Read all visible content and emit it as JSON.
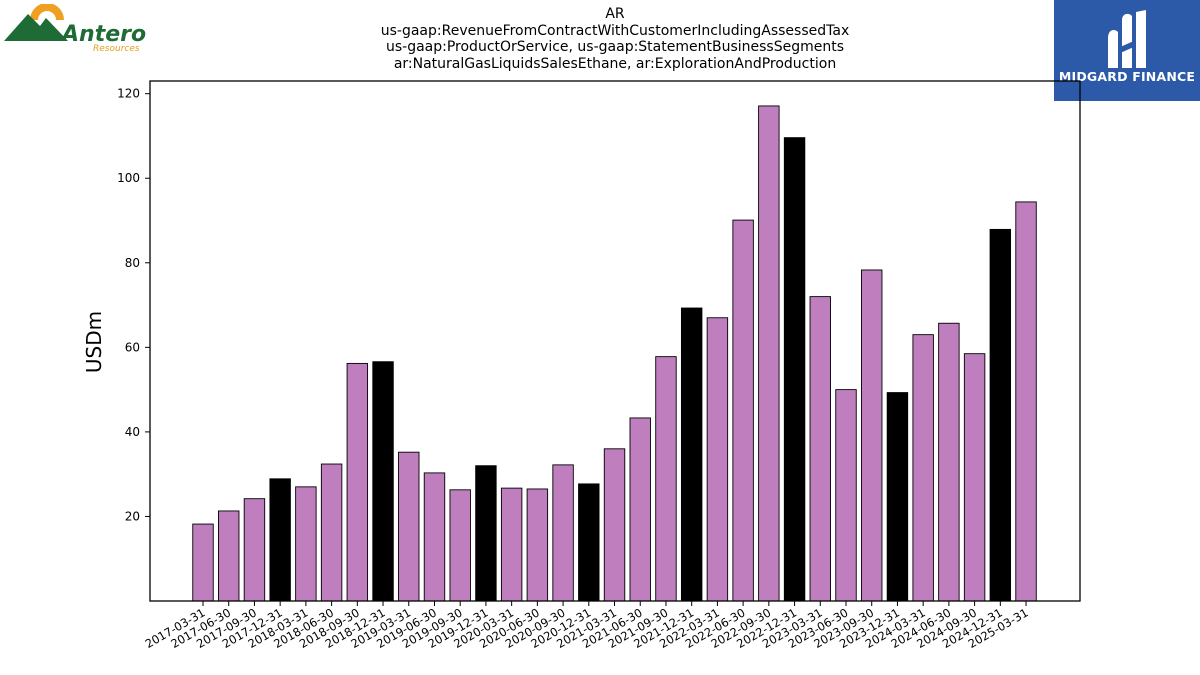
{
  "title": {
    "line1": "AR",
    "line2": "us-gaap:RevenueFromContractWithCustomerIncludingAssessedTax",
    "line3": "us-gaap:ProductOrService, us-gaap:StatementBusinessSegments",
    "line4": "ar:NaturalGasLiquidsSalesEthane, ar:ExplorationAndProduction"
  },
  "logos": {
    "left_brand": "Antero",
    "left_sub": "Resources",
    "right_brand": "MIDGARD FINANCE"
  },
  "colors": {
    "quarter_bar": "#bf7fbf",
    "year_end_bar": "#000000",
    "left_logo_green": "#1f6b35",
    "left_logo_orange": "#f0a020",
    "right_logo_bg": "#2d5aa8"
  },
  "chart_data": {
    "type": "bar",
    "ylabel": "USDm",
    "ylim": [
      0,
      123
    ],
    "yticks": [
      20,
      40,
      60,
      80,
      100,
      120
    ],
    "categories": [
      "2017-03-31",
      "2017-06-30",
      "2017-09-30",
      "2017-12-31",
      "2018-03-31",
      "2018-06-30",
      "2018-09-30",
      "2018-12-31",
      "2019-03-31",
      "2019-06-30",
      "2019-09-30",
      "2019-12-31",
      "2020-03-31",
      "2020-06-30",
      "2020-09-30",
      "2020-12-31",
      "2021-03-31",
      "2021-06-30",
      "2021-09-30",
      "2021-12-31",
      "2022-03-31",
      "2022-06-30",
      "2022-09-30",
      "2022-12-31",
      "2023-03-31",
      "2023-06-30",
      "2023-09-30",
      "2023-12-31",
      "2024-03-31",
      "2024-06-30",
      "2024-09-30",
      "2024-12-31",
      "2025-03-31"
    ],
    "values": [
      18.2,
      21.3,
      24.2,
      28.9,
      27.0,
      32.4,
      56.2,
      56.6,
      35.2,
      30.3,
      26.3,
      32.0,
      26.7,
      26.5,
      32.2,
      27.7,
      36.0,
      43.3,
      57.8,
      69.3,
      67.0,
      90.1,
      117.1,
      109.6,
      72.0,
      50.0,
      78.3,
      49.3,
      63.0,
      65.7,
      58.5,
      87.9,
      94.4
    ],
    "legend": "none",
    "grid": false
  }
}
